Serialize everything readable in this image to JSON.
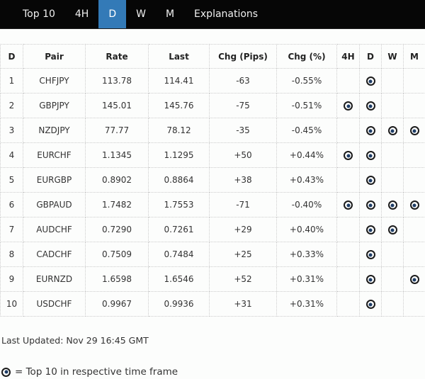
{
  "nav": {
    "tabs": [
      {
        "label": "Top 10",
        "active": false
      },
      {
        "label": "4H",
        "active": false
      },
      {
        "label": "D",
        "active": true
      },
      {
        "label": "W",
        "active": false
      },
      {
        "label": "M",
        "active": false
      },
      {
        "label": "Explanations",
        "active": false
      }
    ]
  },
  "table": {
    "columns": [
      "D",
      "Pair",
      "Rate",
      "Last",
      "Chg (Pips)",
      "Chg (%)",
      "4H",
      "D",
      "W",
      "M"
    ],
    "column_keys": [
      "rank",
      "pair",
      "rate",
      "last",
      "chg-pips",
      "chg-pct",
      "frame-4h",
      "frame-d",
      "frame-w",
      "frame-m"
    ],
    "rows": [
      {
        "rank": "1",
        "pair": "CHFJPY",
        "rate": "113.78",
        "last": "114.41",
        "chg_pips": "-63",
        "chg_pct": "-0.55%",
        "frames": [
          false,
          true,
          false,
          false
        ]
      },
      {
        "rank": "2",
        "pair": "GBPJPY",
        "rate": "145.01",
        "last": "145.76",
        "chg_pips": "-75",
        "chg_pct": "-0.51%",
        "frames": [
          true,
          true,
          false,
          false
        ]
      },
      {
        "rank": "3",
        "pair": "NZDJPY",
        "rate": "77.77",
        "last": "78.12",
        "chg_pips": "-35",
        "chg_pct": "-0.45%",
        "frames": [
          false,
          true,
          true,
          true
        ]
      },
      {
        "rank": "4",
        "pair": "EURCHF",
        "rate": "1.1345",
        "last": "1.1295",
        "chg_pips": "+50",
        "chg_pct": "+0.44%",
        "frames": [
          true,
          true,
          false,
          false
        ]
      },
      {
        "rank": "5",
        "pair": "EURGBP",
        "rate": "0.8902",
        "last": "0.8864",
        "chg_pips": "+38",
        "chg_pct": "+0.43%",
        "frames": [
          false,
          true,
          false,
          false
        ]
      },
      {
        "rank": "6",
        "pair": "GBPAUD",
        "rate": "1.7482",
        "last": "1.7553",
        "chg_pips": "-71",
        "chg_pct": "-0.40%",
        "frames": [
          true,
          true,
          true,
          true
        ]
      },
      {
        "rank": "7",
        "pair": "AUDCHF",
        "rate": "0.7290",
        "last": "0.7261",
        "chg_pips": "+29",
        "chg_pct": "+0.40%",
        "frames": [
          false,
          true,
          true,
          false
        ]
      },
      {
        "rank": "8",
        "pair": "CADCHF",
        "rate": "0.7509",
        "last": "0.7484",
        "chg_pips": "+25",
        "chg_pct": "+0.33%",
        "frames": [
          false,
          true,
          false,
          false
        ]
      },
      {
        "rank": "9",
        "pair": "EURNZD",
        "rate": "1.6598",
        "last": "1.6546",
        "chg_pips": "+52",
        "chg_pct": "+0.31%",
        "frames": [
          false,
          true,
          false,
          true
        ]
      },
      {
        "rank": "10",
        "pair": "USDCHF",
        "rate": "0.9967",
        "last": "0.9936",
        "chg_pips": "+31",
        "chg_pct": "+0.31%",
        "frames": [
          false,
          true,
          false,
          false
        ]
      }
    ]
  },
  "footer": {
    "last_updated": "Last Updated: Nov 29 16:45 GMT",
    "legend_text": "= Top 10 in respective time frame",
    "legend_icon": "bullseye-icon"
  },
  "colors": {
    "accent": "#337ab7",
    "nav_bg": "#060606",
    "border": "#cccccc",
    "icon_ring": "#1c1c1c",
    "icon_center": "#1d3c66"
  }
}
